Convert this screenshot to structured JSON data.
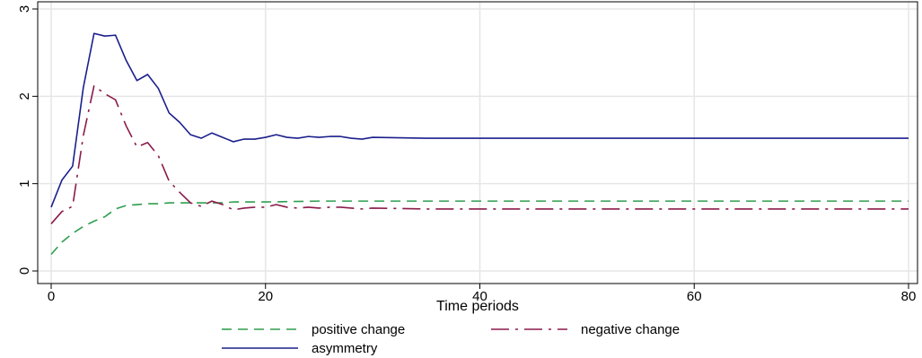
{
  "chart_data": {
    "type": "line",
    "title": "",
    "xlabel": "Time periods",
    "ylabel": "",
    "xlim": [
      0,
      80
    ],
    "ylim": [
      0,
      3
    ],
    "xticks": [
      0,
      20,
      40,
      60,
      80
    ],
    "yticks": [
      0,
      1,
      2,
      3
    ],
    "grid": {
      "x": true,
      "y": true
    },
    "legend_placement": "bottom",
    "series": [
      {
        "name": "positive change",
        "color": "#2e9e4f",
        "dash": "dashed",
        "x": [
          0,
          1,
          2,
          3,
          4,
          5,
          6,
          7,
          8,
          9,
          10,
          11,
          12,
          13,
          14,
          15,
          16,
          17,
          18,
          19,
          20,
          25,
          30,
          40,
          50,
          60,
          70,
          80
        ],
        "values": [
          0.19,
          0.33,
          0.43,
          0.51,
          0.57,
          0.62,
          0.71,
          0.75,
          0.76,
          0.77,
          0.77,
          0.78,
          0.78,
          0.78,
          0.78,
          0.78,
          0.78,
          0.79,
          0.79,
          0.79,
          0.79,
          0.8,
          0.8,
          0.8,
          0.8,
          0.8,
          0.8,
          0.8
        ]
      },
      {
        "name": "negative change",
        "color": "#8b1a4a",
        "dash": "longdash-dot",
        "x": [
          0,
          1,
          2,
          3,
          4,
          5,
          6,
          7,
          8,
          9,
          10,
          11,
          12,
          13,
          14,
          15,
          16,
          17,
          18,
          19,
          20,
          21,
          22,
          23,
          24,
          25,
          26,
          27,
          28,
          29,
          30,
          35,
          40,
          50,
          60,
          70,
          80
        ],
        "values": [
          0.54,
          0.68,
          0.74,
          1.55,
          2.12,
          2.03,
          1.96,
          1.66,
          1.42,
          1.47,
          1.32,
          1.03,
          0.9,
          0.78,
          0.74,
          0.8,
          0.76,
          0.7,
          0.72,
          0.73,
          0.73,
          0.76,
          0.73,
          0.72,
          0.73,
          0.72,
          0.73,
          0.73,
          0.72,
          0.71,
          0.72,
          0.71,
          0.71,
          0.71,
          0.71,
          0.71,
          0.71
        ]
      },
      {
        "name": "asymmetry",
        "color": "#1a1f8c",
        "dash": "solid",
        "x": [
          0,
          1,
          2,
          3,
          4,
          5,
          6,
          7,
          8,
          9,
          10,
          11,
          12,
          13,
          14,
          15,
          16,
          17,
          18,
          19,
          20,
          21,
          22,
          23,
          24,
          25,
          26,
          27,
          28,
          29,
          30,
          35,
          40,
          50,
          60,
          70,
          80
        ],
        "values": [
          0.73,
          1.04,
          1.2,
          2.1,
          2.72,
          2.69,
          2.7,
          2.41,
          2.18,
          2.25,
          2.09,
          1.81,
          1.7,
          1.56,
          1.52,
          1.58,
          1.53,
          1.48,
          1.51,
          1.51,
          1.53,
          1.56,
          1.53,
          1.52,
          1.54,
          1.53,
          1.54,
          1.54,
          1.52,
          1.51,
          1.53,
          1.52,
          1.52,
          1.52,
          1.52,
          1.52,
          1.52
        ]
      }
    ]
  }
}
